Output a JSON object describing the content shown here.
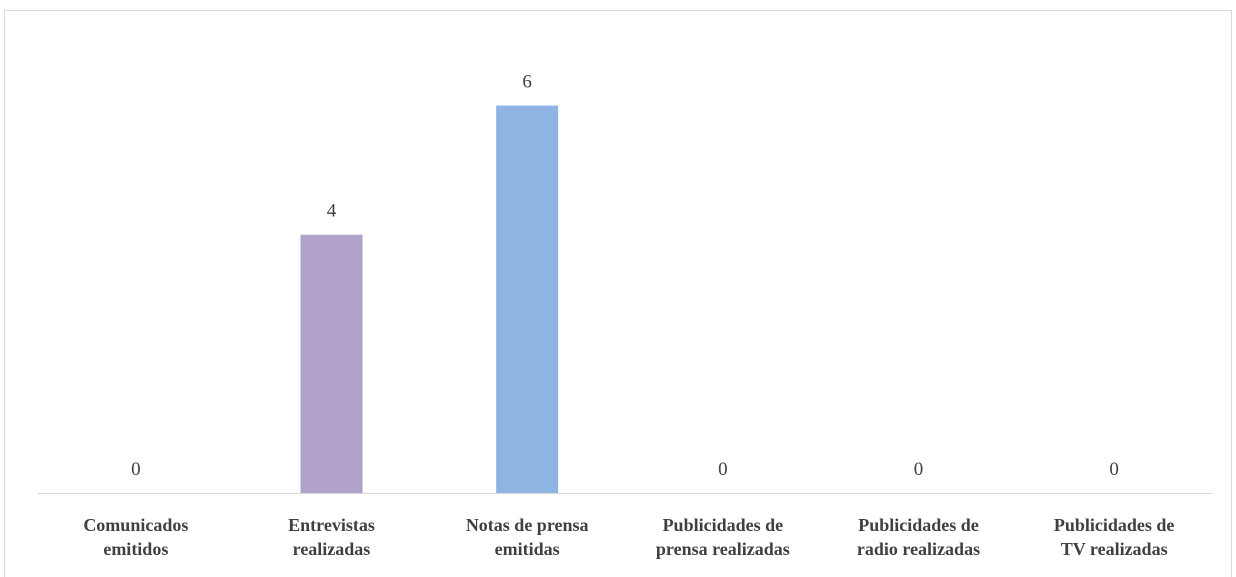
{
  "chart_data": {
    "type": "bar",
    "categories": [
      [
        "Comunicados",
        "emitidos"
      ],
      [
        "Entrevistas",
        "realizadas"
      ],
      [
        "Notas de prensa",
        "emitidas"
      ],
      [
        "Publicidades de",
        "prensa realizadas"
      ],
      [
        "Publicidades de",
        "radio realizadas"
      ],
      [
        "Publicidades de",
        "TV realizadas"
      ]
    ],
    "values": [
      0,
      4,
      6,
      0,
      0,
      0
    ],
    "colors": [
      "#a5a5a5",
      "#b0a2c8",
      "#8eb4e3",
      "#a5a5a5",
      "#a5a5a5",
      "#a5a5a5"
    ],
    "ylim": [
      0,
      7
    ]
  }
}
